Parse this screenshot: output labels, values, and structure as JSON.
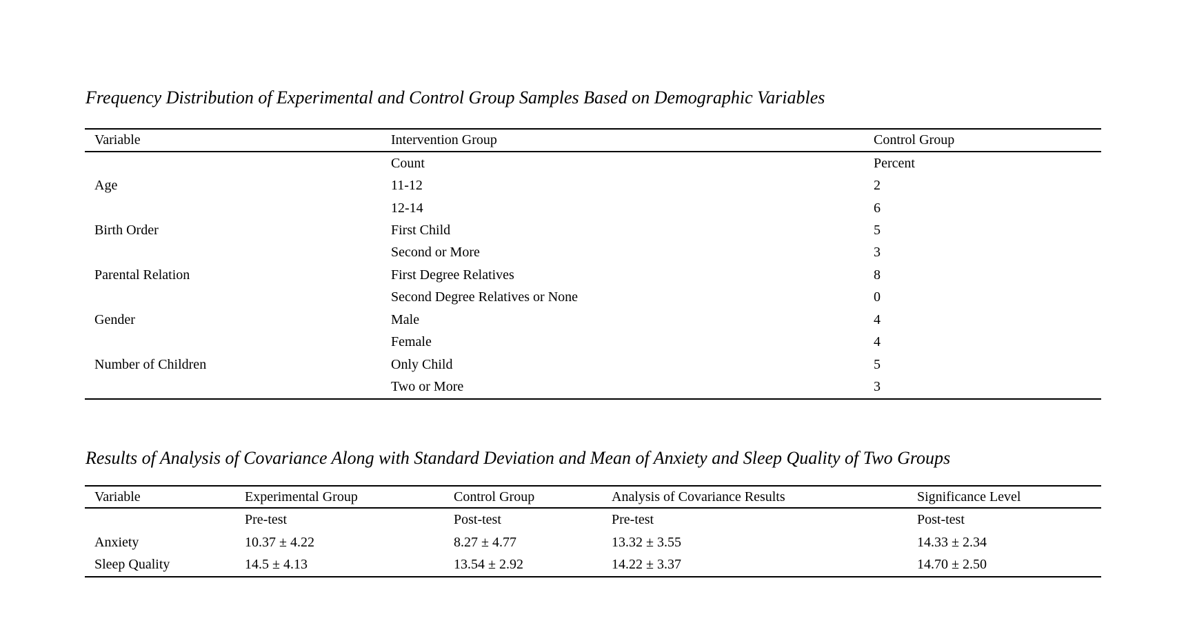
{
  "colors": {
    "background": "#ffffff",
    "text": "#000000",
    "rule": "#000000"
  },
  "table1": {
    "title": "Frequency Distribution of Experimental and Control Group Samples Based on Demographic Variables",
    "headers": [
      "Variable",
      "Intervention Group",
      "Control Group"
    ],
    "rows": [
      [
        "",
        "Count",
        "Percent"
      ],
      [
        "Age",
        "11-12",
        "2"
      ],
      [
        "",
        "12-14",
        "6"
      ],
      [
        "Birth Order",
        "First Child",
        "5"
      ],
      [
        "",
        "Second or More",
        "3"
      ],
      [
        "Parental Relation",
        "First Degree Relatives",
        "8"
      ],
      [
        "",
        "Second Degree Relatives or None",
        "0"
      ],
      [
        "Gender",
        "Male",
        "4"
      ],
      [
        "",
        "Female",
        "4"
      ],
      [
        "Number of Children",
        "Only Child",
        "5"
      ],
      [
        "",
        "Two or More",
        "3"
      ]
    ]
  },
  "table2": {
    "title": "Results of Analysis of Covariance Along with Standard Deviation and Mean of Anxiety and Sleep Quality of Two Groups",
    "headers": [
      "Variable",
      "Experimental Group",
      "Control Group",
      "Analysis of Covariance Results",
      "Significance Level"
    ],
    "rows": [
      [
        "",
        "Pre-test",
        "Post-test",
        "Pre-test",
        "Post-test"
      ],
      [
        "Anxiety",
        "10.37 ± 4.22",
        "8.27 ± 4.77",
        "13.32 ± 3.55",
        "14.33 ± 2.34"
      ],
      [
        "Sleep Quality",
        "14.5 ± 4.13",
        "13.54 ± 2.92",
        "14.22 ± 3.37",
        "14.70 ± 2.50"
      ]
    ]
  }
}
